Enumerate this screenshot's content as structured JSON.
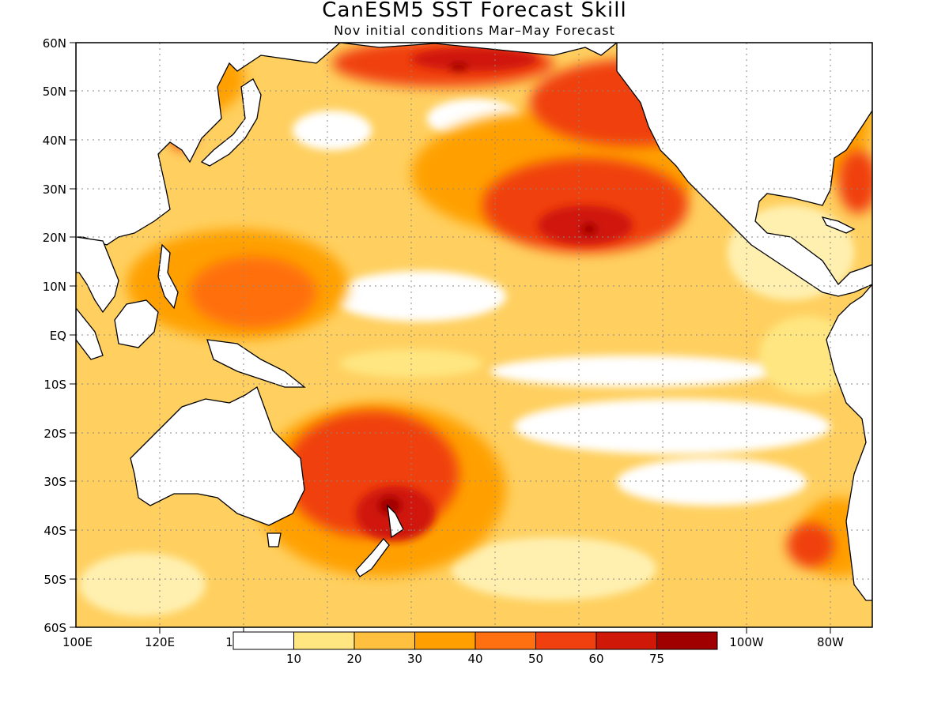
{
  "title": "CanESM5 SST Forecast Skill",
  "subtitle": "Nov initial conditions  Mar–May Forecast",
  "lat_labels": [
    "60N",
    "50N",
    "40N",
    "30N",
    "20N",
    "10N",
    "EQ",
    "10S",
    "20S",
    "30S",
    "40S",
    "50S",
    "60S"
  ],
  "lon_labels": [
    "100E",
    "120E",
    "1",
    "100W",
    "80W"
  ],
  "colorbar": {
    "colors": [
      "#ffffff",
      "#ffe680",
      "#ffc040",
      "#ffa000",
      "#ff7010",
      "#f04010",
      "#d01808",
      "#a00000"
    ],
    "tick_labels": [
      "10",
      "20",
      "30",
      "40",
      "50",
      "60",
      "75"
    ]
  }
}
